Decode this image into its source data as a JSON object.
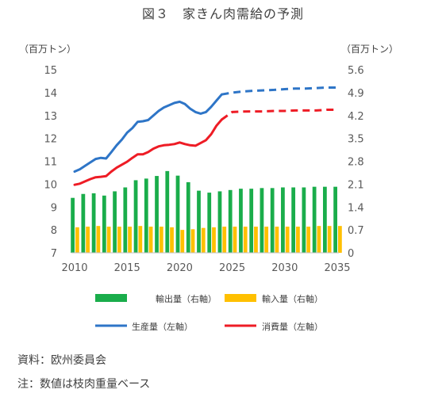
{
  "page": {
    "title": "図３　家きん肉需給の予測",
    "source": "資料：欧州委員会",
    "note": "注：数値は枝肉重量ベース"
  },
  "colors": {
    "exports": "#1aad4b",
    "imports": "#ffc000",
    "production": "#2e75c7",
    "consumption": "#ee1c25",
    "axis": "#bfbfbf"
  },
  "chart_data": {
    "type": "bar+line",
    "title": "家きん肉需給の予測",
    "units": {
      "left": "（百万トン）",
      "right": "（百万トン）"
    },
    "left_axis": {
      "min": 7,
      "max": 15,
      "ticks": [
        "7",
        "8",
        "9",
        "10",
        "11",
        "12",
        "13",
        "14",
        "15"
      ]
    },
    "right_axis": {
      "min": 0,
      "max": 5.6,
      "ticks": [
        "0",
        "0.7",
        "1.4",
        "2.1",
        "2.8",
        "3.5",
        "4.2",
        "4.9",
        "5.6"
      ]
    },
    "x_axis": {
      "min": 2010,
      "max": 2035,
      "ticks": [
        "2010",
        "2015",
        "2020",
        "2025",
        "2030",
        "2035"
      ]
    },
    "projection_start_year": 2023,
    "years": [
      2010,
      2011,
      2012,
      2013,
      2014,
      2015,
      2016,
      2017,
      2018,
      2019,
      2020,
      2021,
      2022,
      2023,
      2024,
      2025,
      2026,
      2027,
      2028,
      2029,
      2030,
      2031,
      2032,
      2033,
      2034,
      2035
    ],
    "bars": [
      {
        "name": "輸出量（右軸）",
        "axis": "right",
        "color": "#1aad4b",
        "values": [
          1.68,
          1.8,
          1.82,
          1.75,
          1.88,
          2.0,
          2.22,
          2.27,
          2.35,
          2.5,
          2.36,
          2.16,
          1.9,
          1.84,
          1.88,
          1.92,
          1.96,
          1.96,
          1.98,
          1.98,
          2.0,
          2.0,
          2.0,
          2.02,
          2.02,
          2.02
        ]
      },
      {
        "name": "輸入量（右軸）",
        "axis": "right",
        "color": "#ffc000",
        "values": [
          0.78,
          0.8,
          0.82,
          0.8,
          0.8,
          0.8,
          0.82,
          0.8,
          0.8,
          0.78,
          0.7,
          0.72,
          0.76,
          0.78,
          0.8,
          0.8,
          0.8,
          0.8,
          0.8,
          0.8,
          0.8,
          0.8,
          0.8,
          0.82,
          0.82,
          0.82
        ]
      }
    ],
    "lines": [
      {
        "name": "生産量（左軸）",
        "axis": "left",
        "color": "#2e75c7",
        "x": [
          2010,
          2010.5,
          2011,
          2011.5,
          2012,
          2012.5,
          2013,
          2013.5,
          2014,
          2014.5,
          2015,
          2015.5,
          2016,
          2016.5,
          2017,
          2017.5,
          2018,
          2018.5,
          2019,
          2019.5,
          2020,
          2020.5,
          2021,
          2021.5,
          2022,
          2022.5,
          2023,
          2023.5,
          2024,
          2025,
          2026,
          2027,
          2028,
          2029,
          2030,
          2031,
          2032,
          2033,
          2034,
          2035
        ],
        "y": [
          10.55,
          10.65,
          10.8,
          10.95,
          11.1,
          11.15,
          11.12,
          11.4,
          11.7,
          11.95,
          12.25,
          12.45,
          12.72,
          12.75,
          12.8,
          13.0,
          13.2,
          13.35,
          13.45,
          13.55,
          13.6,
          13.5,
          13.3,
          13.15,
          13.08,
          13.15,
          13.38,
          13.65,
          13.92,
          14.0,
          14.05,
          14.08,
          14.1,
          14.12,
          14.15,
          14.18,
          14.18,
          14.2,
          14.22,
          14.22
        ]
      },
      {
        "name": "消費量（左軸）",
        "axis": "left",
        "color": "#ee1c25",
        "x": [
          2010,
          2010.5,
          2011,
          2011.5,
          2012,
          2012.5,
          2013,
          2013.5,
          2014,
          2014.5,
          2015,
          2015.5,
          2016,
          2016.5,
          2017,
          2017.5,
          2018,
          2018.5,
          2019,
          2019.5,
          2020,
          2020.5,
          2021,
          2021.5,
          2022,
          2022.5,
          2023,
          2023.5,
          2024,
          2025,
          2026,
          2027,
          2028,
          2029,
          2030,
          2031,
          2032,
          2033,
          2034,
          2035
        ],
        "y": [
          9.97,
          10.02,
          10.12,
          10.22,
          10.3,
          10.32,
          10.35,
          10.55,
          10.72,
          10.85,
          10.98,
          11.15,
          11.3,
          11.3,
          11.4,
          11.55,
          11.65,
          11.7,
          11.72,
          11.75,
          11.82,
          11.75,
          11.7,
          11.68,
          11.8,
          11.92,
          12.18,
          12.55,
          12.82,
          13.15,
          13.17,
          13.18,
          13.18,
          13.2,
          13.2,
          13.22,
          13.22,
          13.22,
          13.25,
          13.25
        ]
      }
    ],
    "legend": [
      "輸出量（右軸）",
      "輸入量（右軸）",
      "生産量（左軸）",
      "消費量（左軸）"
    ]
  }
}
